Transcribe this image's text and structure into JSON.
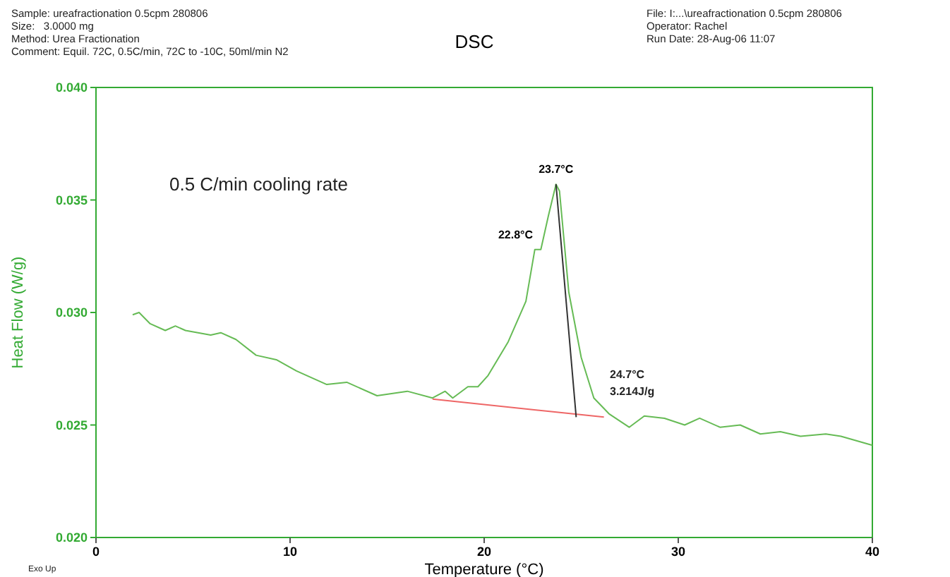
{
  "chart_data": {
    "type": "line",
    "title": "DSC",
    "xlabel": "Temperature (°C)",
    "ylabel": "Heat Flow (W/g)",
    "xlim": [
      0,
      40
    ],
    "xticks": [
      0,
      10,
      20,
      30,
      40
    ],
    "ylim": [
      0.02,
      0.04
    ],
    "yticks": [
      {
        "value": 0.02,
        "label": "0.020"
      },
      {
        "value": 0.025,
        "label": "0.025"
      },
      {
        "value": 0.03,
        "label": "0.030"
      },
      {
        "value": 0.035,
        "label": "0.035"
      },
      {
        "value": 0.04,
        "label": "0.040"
      }
    ],
    "grid": false,
    "marker": "none",
    "line_style": "solid",
    "series": [
      {
        "color": "#66bb55",
        "x": [
          1.89,
          2.22,
          2.79,
          3.57,
          4.09,
          4.61,
          5.91,
          6.43,
          7.21,
          8.25,
          9.29,
          10.33,
          11.89,
          12.92,
          14.48,
          16.04,
          17.34,
          17.99,
          18.38,
          19.16,
          19.68,
          20.2,
          21.24,
          22.15,
          22.61,
          22.92,
          23.31,
          23.7,
          23.88,
          24.36,
          25.0,
          25.65,
          26.43,
          27.47,
          28.25,
          29.29,
          30.33,
          31.1,
          32.15,
          33.19,
          34.23,
          35.26,
          36.3,
          37.6,
          38.38,
          40
        ],
        "values": [
          0.0299,
          0.03,
          0.0295,
          0.0292,
          0.0294,
          0.0292,
          0.029,
          0.0291,
          0.0288,
          0.0281,
          0.0279,
          0.0274,
          0.0268,
          0.0269,
          0.0263,
          0.0265,
          0.0262,
          0.0265,
          0.0262,
          0.0267,
          0.0267,
          0.0272,
          0.0287,
          0.0305,
          0.0328,
          0.0328,
          0.0343,
          0.0357,
          0.0354,
          0.0309,
          0.028,
          0.0262,
          0.0255,
          0.0249,
          0.0254,
          0.0253,
          0.025,
          0.0253,
          0.0249,
          0.025,
          0.0246,
          0.0247,
          0.0245,
          0.0246,
          0.0245,
          0.0241
        ]
      },
      {
        "color": "#ee6666",
        "x": [
          17.34,
          26.17
        ],
        "values": [
          0.02615,
          0.02535
        ]
      },
      {
        "color": "#333333",
        "x": [
          23.7,
          24.74
        ],
        "values": [
          0.0357,
          0.02535
        ]
      }
    ],
    "annotations": [
      "Sample: ureafractionation 0.5cpm 280806",
      "Size:   3.0000 mg",
      "Method: Urea Fractionation",
      "Comment: Equil. 72C, 0.5C/min, 72C to -10C, 50ml/min N2",
      "File: I:...\\ureafractionation 0.5cpm 280806",
      "Operator: Rachel",
      "Run Date: 28-Aug-06 11:07",
      "0.5 C/min cooling rate",
      "Exo Up",
      "24.7°C",
      "3.214J/g",
      {
        "text": "23.7°C",
        "x": 23.7,
        "y": 0.0357
      },
      {
        "text": "22.8°C",
        "x": 22.8,
        "y": 0.0328
      }
    ]
  }
}
